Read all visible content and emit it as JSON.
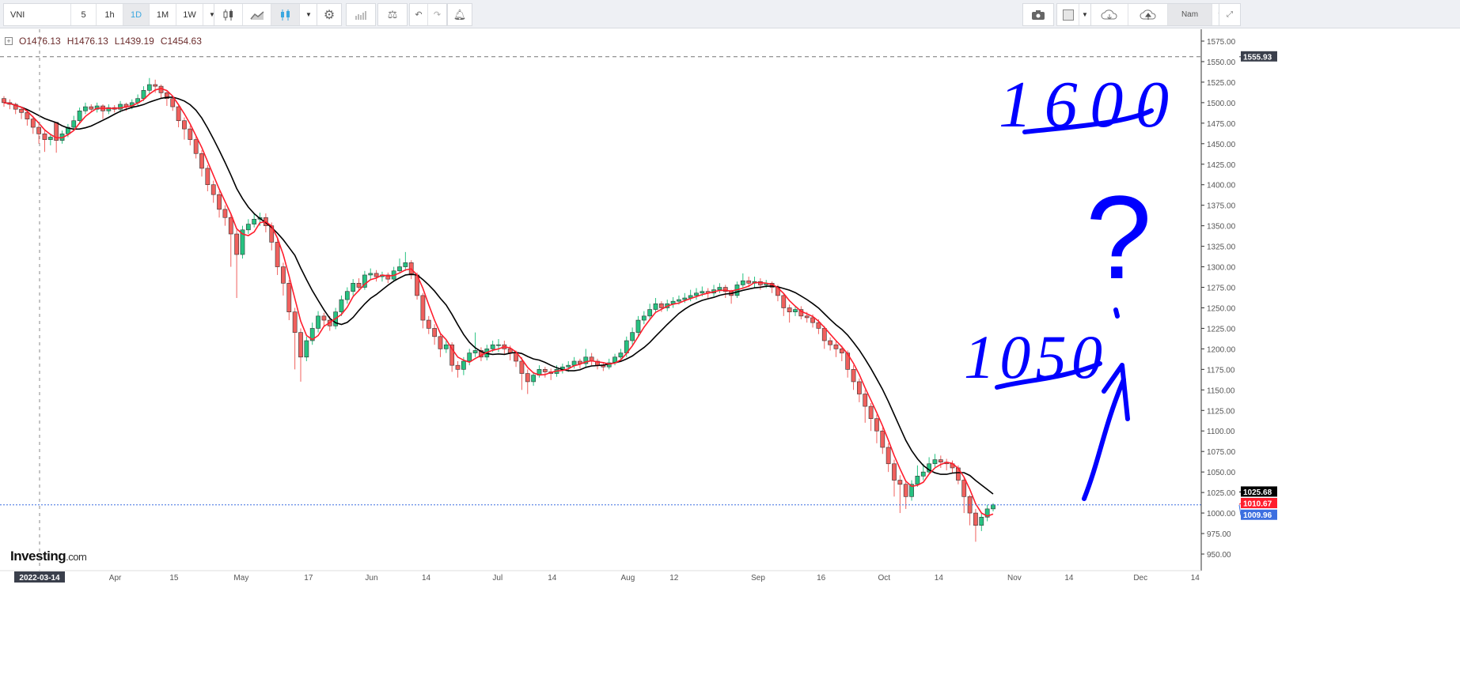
{
  "toolbar": {
    "symbol": "VNI",
    "intervals": [
      "5",
      "1h",
      "1D",
      "1M",
      "1W"
    ],
    "active_interval": "1D",
    "language": "Nam"
  },
  "ohlc_legend": {
    "open": "O1476.13",
    "high": "H1476.13",
    "low": "L1439.19",
    "close": "C1454.63"
  },
  "logo": {
    "brand": "Investing",
    "suffix": ".com"
  },
  "annotations": {
    "upper_target": "1600",
    "question": "?",
    "lower_target": "1050"
  },
  "colors": {
    "up": "#26c281",
    "down": "#f0605d",
    "ma_fast": "#ff1e2d",
    "ma_slow": "#000000",
    "price_line": "#3c6fe0",
    "annotation": "#0000ff",
    "active": "#3ba8e0"
  },
  "chart_data": {
    "type": "candlestick",
    "ylim": [
      940,
      1590
    ],
    "y_ticks": [
      "1575.00",
      "1550.00",
      "1525.00",
      "1500.00",
      "1475.00",
      "1450.00",
      "1425.00",
      "1400.00",
      "1375.00",
      "1350.00",
      "1325.00",
      "1300.00",
      "1275.00",
      "1250.00",
      "1225.00",
      "1200.00",
      "1175.00",
      "1150.00",
      "1125.00",
      "1100.00",
      "1075.00",
      "1050.00",
      "1025.00",
      "1000.00",
      "975.00",
      "950.00"
    ],
    "x_ticks": [
      {
        "label": "2022-03-14",
        "date": "2022-03-14",
        "highlight": true
      },
      {
        "label": "Apr",
        "date": "2022-04-01"
      },
      {
        "label": "15",
        "date": "2022-04-15"
      },
      {
        "label": "May",
        "date": "2022-05-01"
      },
      {
        "label": "17",
        "date": "2022-05-17"
      },
      {
        "label": "Jun",
        "date": "2022-06-01"
      },
      {
        "label": "14",
        "date": "2022-06-14"
      },
      {
        "label": "Jul",
        "date": "2022-07-01"
      },
      {
        "label": "14",
        "date": "2022-07-14"
      },
      {
        "label": "Aug",
        "date": "2022-08-01"
      },
      {
        "label": "12",
        "date": "2022-08-12"
      },
      {
        "label": "Sep",
        "date": "2022-09-01"
      },
      {
        "label": "16",
        "date": "2022-09-16"
      },
      {
        "label": "Oct",
        "date": "2022-10-01"
      },
      {
        "label": "14",
        "date": "2022-10-14"
      },
      {
        "label": "Nov",
        "date": "2022-11-01"
      },
      {
        "label": "14",
        "date": "2022-11-14"
      },
      {
        "label": "Dec",
        "date": "2022-12-01"
      },
      {
        "label": "14",
        "date": "2022-12-14"
      }
    ],
    "price_labels": {
      "high_marker": "1555.93",
      "ma_slow_last": "1025.68",
      "ma_fast_last": "1010.67",
      "last_price": "1009.96"
    },
    "high_marker_value": 1555.93,
    "last_price_value": 1009.96,
    "open": [
      1505,
      1500,
      1498,
      1492,
      1488,
      1480,
      1470,
      1462,
      1455,
      1476,
      1454,
      1462,
      1470,
      1478,
      1490,
      1495,
      1492,
      1496,
      1490,
      1494,
      1492,
      1498,
      1495,
      1500,
      1505,
      1515,
      1522,
      1520,
      1512,
      1505,
      1495,
      1478,
      1468,
      1455,
      1438,
      1420,
      1400,
      1388,
      1370,
      1360,
      1340,
      1315,
      1345,
      1352,
      1358,
      1360,
      1350,
      1330,
      1300,
      1280,
      1245,
      1220,
      1190,
      1210,
      1225,
      1240,
      1235,
      1228,
      1245,
      1260,
      1270,
      1280,
      1275,
      1290,
      1292,
      1288,
      1290,
      1285,
      1295,
      1300,
      1305,
      1290,
      1265,
      1235,
      1225,
      1215,
      1200,
      1205,
      1180,
      1175,
      1185,
      1195,
      1198,
      1190,
      1200,
      1205,
      1205,
      1200,
      1195,
      1185,
      1170,
      1160,
      1168,
      1175,
      1172,
      1170,
      1175,
      1178,
      1180,
      1185,
      1182,
      1190,
      1185,
      1180,
      1178,
      1183,
      1190,
      1195,
      1210,
      1220,
      1235,
      1240,
      1248,
      1255,
      1250,
      1255,
      1258,
      1260,
      1262,
      1265,
      1268,
      1270,
      1268,
      1272,
      1275,
      1270,
      1265,
      1278,
      1283,
      1280,
      1282,
      1278,
      1280,
      1275,
      1265,
      1250,
      1245,
      1248,
      1240,
      1238,
      1232,
      1225,
      1210,
      1205,
      1200,
      1195,
      1175,
      1160,
      1145,
      1130,
      1115,
      1100,
      1080,
      1060,
      1040,
      1035,
      1020,
      1035,
      1045,
      1050,
      1060,
      1065,
      1062,
      1060,
      1055,
      1040,
      1020,
      1000,
      985,
      995,
      1005
    ],
    "high": [
      1508,
      1504,
      1500,
      1495,
      1490,
      1484,
      1474,
      1466,
      1462,
      1476,
      1466,
      1474,
      1484,
      1494,
      1500,
      1498,
      1500,
      1498,
      1498,
      1497,
      1502,
      1500,
      1504,
      1510,
      1520,
      1530,
      1528,
      1522,
      1514,
      1508,
      1498,
      1482,
      1472,
      1460,
      1442,
      1424,
      1405,
      1392,
      1375,
      1364,
      1345,
      1350,
      1358,
      1365,
      1366,
      1365,
      1354,
      1335,
      1305,
      1284,
      1250,
      1225,
      1215,
      1232,
      1246,
      1244,
      1240,
      1250,
      1265,
      1275,
      1285,
      1286,
      1295,
      1298,
      1296,
      1294,
      1293,
      1300,
      1310,
      1318,
      1308,
      1293,
      1268,
      1240,
      1230,
      1218,
      1210,
      1208,
      1185,
      1190,
      1200,
      1220,
      1202,
      1205,
      1210,
      1212,
      1210,
      1204,
      1198,
      1190,
      1175,
      1172,
      1180,
      1178,
      1176,
      1180,
      1182,
      1185,
      1190,
      1188,
      1200,
      1195,
      1188,
      1184,
      1188,
      1194,
      1200,
      1215,
      1226,
      1240,
      1246,
      1255,
      1262,
      1258,
      1260,
      1263,
      1265,
      1268,
      1272,
      1274,
      1276,
      1274,
      1278,
      1280,
      1278,
      1272,
      1282,
      1292,
      1288,
      1288,
      1286,
      1284,
      1282,
      1278,
      1268,
      1254,
      1252,
      1252,
      1245,
      1242,
      1236,
      1228,
      1214,
      1210,
      1204,
      1198,
      1180,
      1164,
      1150,
      1134,
      1120,
      1104,
      1085,
      1065,
      1046,
      1040,
      1040,
      1058,
      1060,
      1068,
      1072,
      1070,
      1066,
      1064,
      1058,
      1044,
      1022,
      1005,
      1000,
      1010,
      1012
    ],
    "low": [
      1495,
      1492,
      1486,
      1480,
      1472,
      1462,
      1450,
      1440,
      1448,
      1439,
      1450,
      1458,
      1466,
      1474,
      1486,
      1488,
      1488,
      1480,
      1486,
      1488,
      1488,
      1490,
      1492,
      1496,
      1502,
      1510,
      1512,
      1505,
      1496,
      1490,
      1470,
      1455,
      1448,
      1432,
      1410,
      1392,
      1378,
      1360,
      1350,
      1300,
      1262,
      1310,
      1340,
      1348,
      1350,
      1342,
      1320,
      1290,
      1265,
      1235,
      1175,
      1160,
      1185,
      1205,
      1220,
      1228,
      1222,
      1224,
      1240,
      1255,
      1265,
      1270,
      1272,
      1284,
      1282,
      1282,
      1280,
      1282,
      1292,
      1295,
      1285,
      1260,
      1225,
      1218,
      1205,
      1190,
      1195,
      1172,
      1165,
      1168,
      1180,
      1190,
      1185,
      1186,
      1196,
      1196,
      1194,
      1186,
      1178,
      1150,
      1145,
      1155,
      1165,
      1165,
      1162,
      1166,
      1170,
      1172,
      1176,
      1176,
      1178,
      1180,
      1175,
      1173,
      1175,
      1180,
      1186,
      1190,
      1205,
      1216,
      1230,
      1236,
      1244,
      1245,
      1246,
      1250,
      1254,
      1256,
      1258,
      1260,
      1264,
      1262,
      1264,
      1268,
      1262,
      1255,
      1262,
      1274,
      1275,
      1274,
      1272,
      1274,
      1268,
      1258,
      1240,
      1232,
      1240,
      1236,
      1232,
      1226,
      1218,
      1200,
      1198,
      1190,
      1185,
      1165,
      1150,
      1135,
      1110,
      1100,
      1085,
      1072,
      1050,
      1020,
      1000,
      1005,
      1015,
      1032,
      1040,
      1048,
      1056,
      1055,
      1052,
      1048,
      1035,
      1000,
      985,
      965,
      978,
      990,
      1002
    ],
    "close": [
      1500,
      1498,
      1492,
      1488,
      1480,
      1470,
      1462,
      1455,
      1458,
      1454,
      1462,
      1470,
      1478,
      1490,
      1495,
      1492,
      1496,
      1490,
      1494,
      1492,
      1498,
      1495,
      1500,
      1505,
      1515,
      1522,
      1520,
      1512,
      1505,
      1495,
      1478,
      1468,
      1455,
      1438,
      1420,
      1400,
      1388,
      1370,
      1360,
      1340,
      1315,
      1345,
      1352,
      1358,
      1360,
      1350,
      1330,
      1300,
      1280,
      1245,
      1220,
      1190,
      1210,
      1225,
      1240,
      1235,
      1228,
      1245,
      1260,
      1270,
      1280,
      1275,
      1290,
      1292,
      1288,
      1290,
      1285,
      1295,
      1300,
      1305,
      1290,
      1265,
      1235,
      1225,
      1215,
      1200,
      1205,
      1180,
      1175,
      1185,
      1195,
      1198,
      1190,
      1200,
      1205,
      1205,
      1200,
      1195,
      1185,
      1170,
      1160,
      1168,
      1175,
      1172,
      1170,
      1175,
      1178,
      1180,
      1185,
      1182,
      1190,
      1185,
      1180,
      1178,
      1183,
      1190,
      1195,
      1210,
      1220,
      1235,
      1240,
      1248,
      1255,
      1250,
      1255,
      1258,
      1260,
      1262,
      1265,
      1268,
      1270,
      1268,
      1272,
      1275,
      1270,
      1265,
      1278,
      1283,
      1280,
      1282,
      1278,
      1280,
      1275,
      1265,
      1250,
      1245,
      1248,
      1240,
      1238,
      1232,
      1225,
      1210,
      1205,
      1200,
      1195,
      1175,
      1160,
      1145,
      1130,
      1115,
      1100,
      1080,
      1060,
      1040,
      1035,
      1020,
      1035,
      1045,
      1050,
      1060,
      1065,
      1062,
      1060,
      1055,
      1040,
      1020,
      1000,
      985,
      995,
      1005,
      1009.96
    ]
  }
}
